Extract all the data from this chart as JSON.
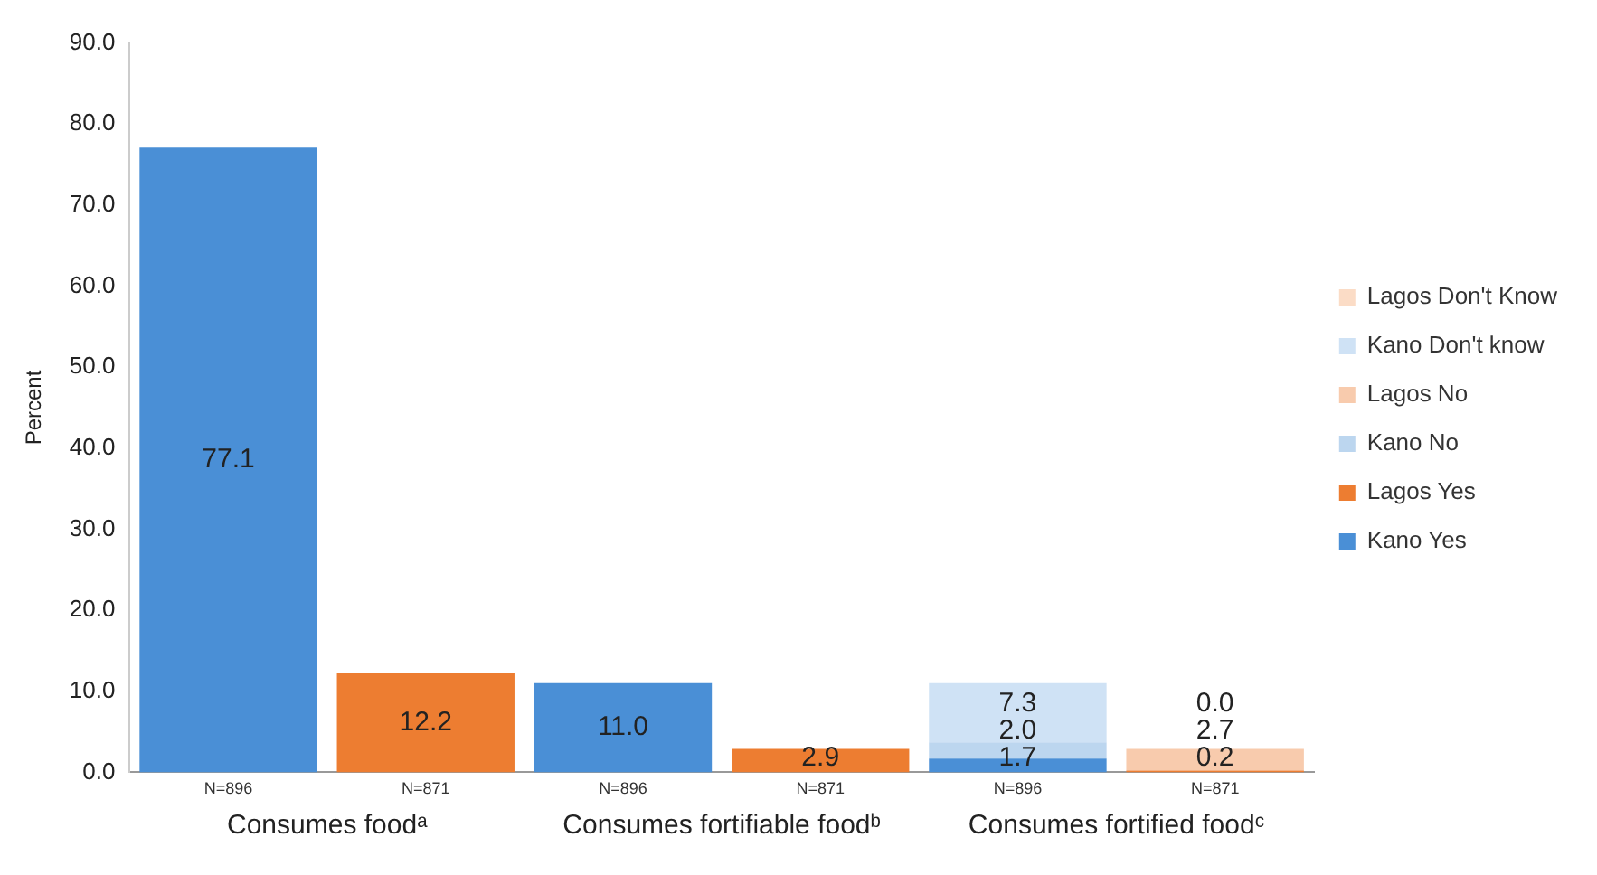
{
  "chart_data": {
    "type": "bar",
    "stacked": true,
    "ylabel": "Percent",
    "categories": [
      "N=896",
      "N=871",
      "N=896",
      "N=871",
      "N=896",
      "N=871"
    ],
    "series": [
      {
        "name": "Kano Yes",
        "color": "#4a8fd6",
        "values": [
          77.1,
          null,
          11.0,
          null,
          1.7,
          null
        ],
        "value_labels": [
          "77.1",
          null,
          "11.0",
          null,
          "1.7",
          null
        ]
      },
      {
        "name": "Lagos Yes",
        "color": "#ed7d31",
        "values": [
          null,
          12.2,
          null,
          2.9,
          null,
          0.2
        ],
        "value_labels": [
          null,
          "12.2",
          null,
          "2.9",
          null,
          "0.2"
        ]
      },
      {
        "name": "Kano No",
        "color": "#bcd6ef",
        "values": [
          null,
          null,
          null,
          null,
          2.0,
          null
        ],
        "value_labels": [
          null,
          null,
          null,
          null,
          "2.0",
          null
        ]
      },
      {
        "name": "Lagos No",
        "color": "#f8cbad",
        "values": [
          null,
          null,
          null,
          null,
          null,
          2.7
        ],
        "value_labels": [
          null,
          null,
          null,
          null,
          null,
          "2.7"
        ]
      },
      {
        "name": "Kano Don't know",
        "color": "#cfe2f5",
        "values": [
          null,
          null,
          null,
          null,
          7.3,
          null
        ],
        "value_labels": [
          null,
          null,
          null,
          null,
          "7.3",
          null
        ]
      },
      {
        "name": "Lagos Don't Know",
        "color": "#fbdcc6",
        "values": [
          null,
          null,
          null,
          null,
          null,
          0.0
        ],
        "value_labels": [
          null,
          null,
          null,
          null,
          null,
          "0.0"
        ]
      }
    ],
    "ylim": [
      0,
      90
    ],
    "yticks": [
      {
        "value": 0,
        "label": "0.0"
      },
      {
        "value": 10,
        "label": "10.0"
      },
      {
        "value": 20,
        "label": "20.0"
      },
      {
        "value": 30,
        "label": "30.0"
      },
      {
        "value": 40,
        "label": "40.0"
      },
      {
        "value": 50,
        "label": "50.0"
      },
      {
        "value": 60,
        "label": "60.0"
      },
      {
        "value": 70,
        "label": "70.0"
      },
      {
        "value": 80,
        "label": "80.0"
      },
      {
        "value": 90,
        "label": "90.0"
      }
    ],
    "grid": false,
    "legend": "right",
    "annotations": [
      "Consumes foodᵃ",
      "Consumes fortifiable foodᵇ",
      "Consumes fortified foodᶜ"
    ]
  }
}
